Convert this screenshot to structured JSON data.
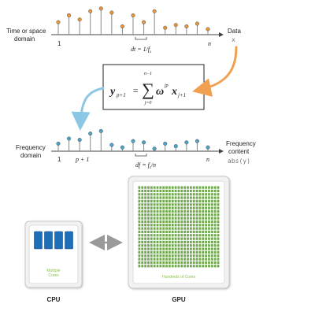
{
  "time_domain": {
    "axis_label_line1": "Time or space",
    "axis_label_line2": "domain",
    "start_label": "1",
    "end_label": "n",
    "spacing_label": "dt = 1/f",
    "spacing_sub": "s",
    "output_label": "Data",
    "output_var": "x",
    "stem_color": "#e8943a",
    "values": [
      0.45,
      0.7,
      0.55,
      0.85,
      0.95,
      0.8,
      0.3,
      0.7,
      0.45,
      0.85,
      0.25,
      0.35,
      0.3,
      0.4,
      0.2
    ]
  },
  "formula": {
    "lhs": "y",
    "lhs_sub": "p+1",
    "equals": "=",
    "sum_upper": "n−1",
    "sum_symbol": "∑",
    "sum_lower": "j=0",
    "omega": "ω",
    "omega_sup": "jp",
    "rhs": "x",
    "rhs_sub": "j+1"
  },
  "frequency_domain": {
    "axis_label_line1": "Frequency",
    "axis_label_line2": "domain",
    "start_label": "1",
    "index_label": "p + 1",
    "end_label": "n",
    "spacing_label": "df = f",
    "spacing_sub": "s",
    "spacing_suffix": "/n",
    "output_label_line1": "Frequency",
    "output_label_line2": "content",
    "output_var": "abs(y)",
    "stem_color": "#4aa3c8",
    "values": [
      0.3,
      0.5,
      0.45,
      0.7,
      0.8,
      0.25,
      0.15,
      0.4,
      0.35,
      0.1,
      0.3,
      0.2,
      0.35,
      0.4,
      0.15
    ]
  },
  "colors": {
    "arrow_orange": "#f0a050",
    "arrow_blue": "#8cc8e6",
    "gpu_core": "#6ea84a",
    "cpu_core": "#1e6fb8",
    "card_border": "#c8c8c8"
  },
  "cpu": {
    "cores_label_line1": "Multiple",
    "cores_label_line2": "Cores",
    "caption": "CPU",
    "core_count": 4
  },
  "gpu": {
    "cores_label": "Hundreds of Cores",
    "caption": "GPU",
    "grid_cols": 27,
    "grid_rows": 24
  }
}
